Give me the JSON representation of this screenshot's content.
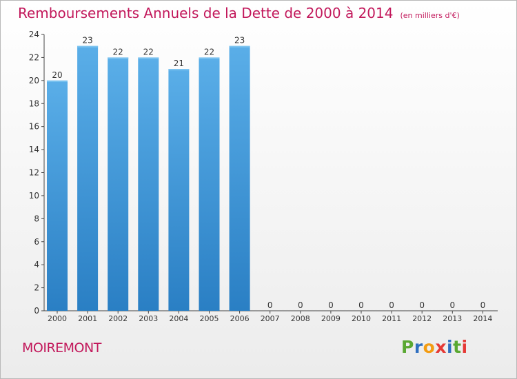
{
  "title": "Remboursements Annuels de la Dette de 2000 à 2014",
  "unit_note": "(en milliers d'€)",
  "place": "MOIREMONT",
  "brand": {
    "letters": [
      "P",
      "r",
      "o",
      "x",
      "i",
      "t",
      "i"
    ],
    "colors": [
      "#5aa832",
      "#2f6fc0",
      "#f39c12",
      "#e53935",
      "#2f6fc0",
      "#5aa832",
      "#e53935"
    ]
  },
  "colors": {
    "bar_top": "#5aaee8",
    "bar_bottom": "#2a7fc4",
    "text_accent": "#c2185b"
  },
  "chart_data": {
    "type": "bar",
    "categories": [
      "2000",
      "2001",
      "2002",
      "2003",
      "2004",
      "2005",
      "2006",
      "2007",
      "2008",
      "2009",
      "2010",
      "2011",
      "2012",
      "2013",
      "2014"
    ],
    "values": [
      20,
      23,
      22,
      22,
      21,
      22,
      23,
      0,
      0,
      0,
      0,
      0,
      0,
      0,
      0
    ],
    "ylim": [
      0,
      24
    ],
    "yticks": [
      0,
      2,
      4,
      6,
      8,
      10,
      12,
      14,
      16,
      18,
      20,
      22,
      24
    ],
    "grid": false,
    "legend": "none"
  }
}
